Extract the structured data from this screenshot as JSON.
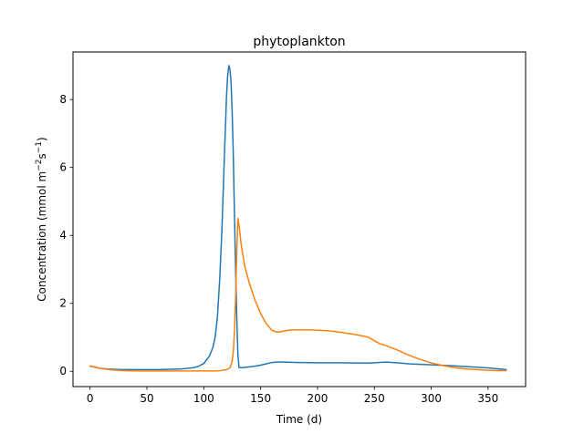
{
  "chart_data": {
    "type": "line",
    "title": "phytoplankton",
    "xlabel": "Time (d)",
    "ylabel_parts": [
      "Concentration (mmol m",
      "−2",
      "s",
      "−1",
      ")"
    ],
    "xlim": [
      -15,
      383
    ],
    "ylim": [
      -0.45,
      9.4
    ],
    "xticks": [
      0,
      50,
      100,
      150,
      200,
      250,
      300,
      350
    ],
    "yticks": [
      0,
      2,
      4,
      6,
      8
    ],
    "grid": false,
    "series": [
      {
        "color": "#1f77b4",
        "x": [
          0,
          10,
          20,
          30,
          40,
          50,
          60,
          70,
          80,
          90,
          95,
          100,
          105,
          108,
          110,
          112,
          114,
          116,
          118,
          120,
          121,
          122,
          123,
          124,
          125,
          126,
          127,
          128,
          129,
          130,
          131,
          135,
          140,
          145,
          150,
          155,
          160,
          165,
          170,
          180,
          200,
          220,
          245,
          255,
          260,
          270,
          280,
          300,
          320,
          340,
          350,
          366
        ],
        "y": [
          0.15,
          0.08,
          0.06,
          0.05,
          0.05,
          0.05,
          0.05,
          0.06,
          0.07,
          0.1,
          0.14,
          0.23,
          0.45,
          0.7,
          1.0,
          1.6,
          2.7,
          4.2,
          6.2,
          8.1,
          8.7,
          9.0,
          8.9,
          8.5,
          7.6,
          6.3,
          4.6,
          3.0,
          1.6,
          0.5,
          0.11,
          0.11,
          0.13,
          0.15,
          0.18,
          0.22,
          0.26,
          0.27,
          0.27,
          0.26,
          0.25,
          0.25,
          0.24,
          0.26,
          0.27,
          0.25,
          0.22,
          0.19,
          0.16,
          0.12,
          0.1,
          0.05
        ]
      },
      {
        "color": "#ff7f0e",
        "x": [
          0,
          10,
          20,
          30,
          40,
          50,
          60,
          70,
          80,
          90,
          100,
          110,
          115,
          120,
          123,
          125,
          126,
          127,
          128,
          129,
          130,
          131,
          133,
          136,
          140,
          145,
          150,
          155,
          160,
          165,
          170,
          175,
          180,
          190,
          200,
          210,
          220,
          230,
          240,
          245,
          250,
          255,
          260,
          270,
          280,
          290,
          300,
          310,
          320,
          330,
          340,
          350,
          360,
          366
        ],
        "y": [
          0.16,
          0.08,
          0.04,
          0.02,
          0.01,
          0.01,
          0.01,
          0.01,
          0.01,
          0.01,
          0.01,
          0.01,
          0.02,
          0.05,
          0.1,
          0.3,
          0.6,
          1.2,
          2.2,
          3.5,
          4.5,
          4.3,
          3.7,
          3.1,
          2.6,
          2.1,
          1.7,
          1.4,
          1.2,
          1.15,
          1.18,
          1.21,
          1.22,
          1.22,
          1.21,
          1.19,
          1.15,
          1.1,
          1.04,
          1.0,
          0.9,
          0.81,
          0.76,
          0.63,
          0.48,
          0.35,
          0.25,
          0.17,
          0.11,
          0.07,
          0.05,
          0.03,
          0.02,
          0.02
        ]
      }
    ]
  }
}
